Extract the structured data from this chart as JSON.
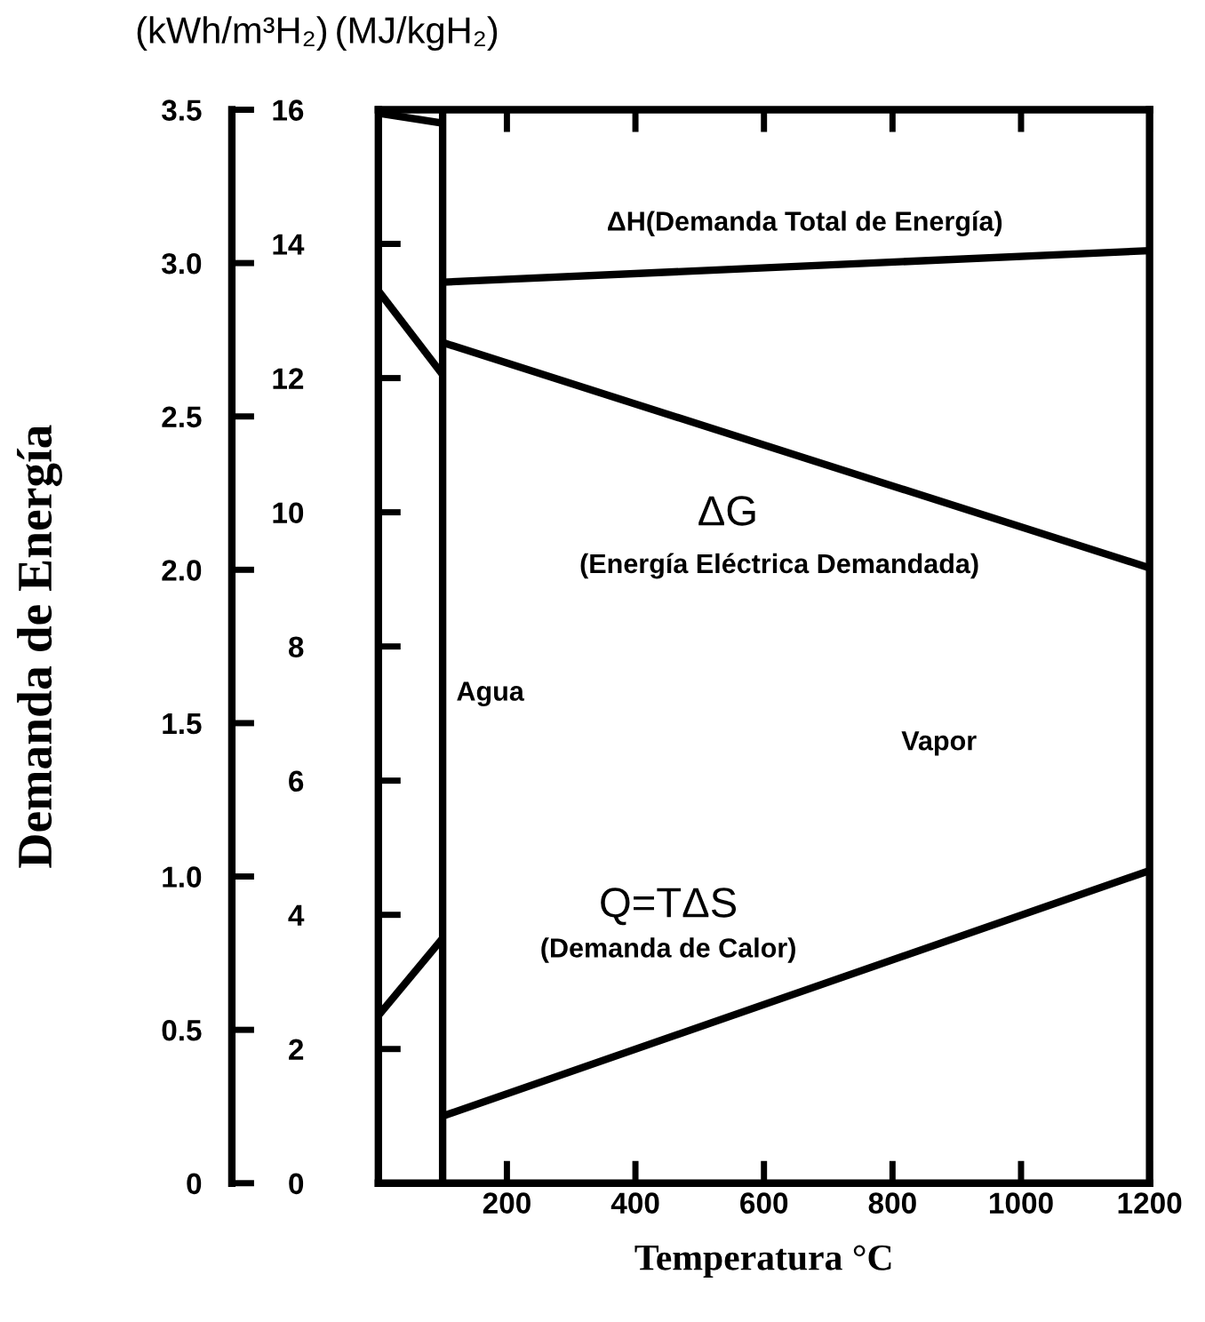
{
  "chart_data": {
    "type": "line",
    "xlabel": "Temperatura °C",
    "ylabel": "(MJ/kgH₂)",
    "y2label": "Demanda de Energía",
    "xlim": [
      0,
      1200
    ],
    "xticks": [
      200,
      400,
      600,
      800,
      1000,
      1200
    ],
    "ylim": [
      0,
      16
    ],
    "yticks": [
      0,
      2,
      4,
      6,
      8,
      10,
      12,
      14,
      16
    ],
    "y2lim": [
      0,
      3.5
    ],
    "y2ticks": [
      0,
      0.5,
      {
        "value": 1,
        "label": "1.0"
      },
      1.5,
      {
        "value": 2,
        "label": "2.0"
      },
      2.5,
      {
        "value": 3,
        "label": "3.0"
      },
      3.5
    ],
    "grid": false,
    "legend": false,
    "marker": "none",
    "line_style": "solid",
    "series": [
      {
        "color": "#000000",
        "x": [
          0,
          100
        ],
        "values": [
          15.95,
          15.8
        ]
      },
      {
        "color": "#000000",
        "x": [
          100,
          1200
        ],
        "values": [
          13.43,
          13.9
        ]
      },
      {
        "color": "#000000",
        "x": [
          0,
          100
        ],
        "values": [
          13.3,
          12.05
        ]
      },
      {
        "color": "#000000",
        "x": [
          100,
          1200
        ],
        "values": [
          12.53,
          9.17
        ]
      },
      {
        "color": "#000000",
        "x": [
          0,
          100
        ],
        "values": [
          2.5,
          3.65
        ]
      },
      {
        "color": "#000000",
        "x": [
          100,
          1200
        ],
        "values": [
          1.0,
          4.66
        ]
      }
    ],
    "ref_lines": [
      {
        "axis": "x",
        "value": 100,
        "color": "#000000",
        "line_style": "solid"
      }
    ],
    "annotations": [
      "(kWh/m³H₂)",
      "ΔH(Demanda Total de Energía)",
      "ΔG",
      "(Energía Eléctrica Demandada)",
      "Agua",
      "Vapor",
      "Q=TΔS",
      "(Demanda de Calor)"
    ]
  }
}
